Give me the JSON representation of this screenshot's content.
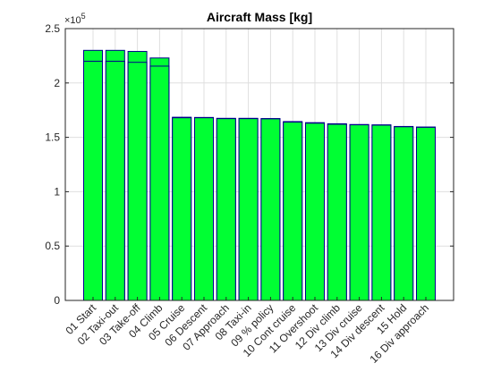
{
  "chart_data": {
    "type": "bar",
    "title": "Aircraft Mass [kg]",
    "xlabel": "",
    "ylabel": "",
    "y_exponent_label": "×10",
    "y_exponent_power": "5",
    "ylim": [
      0,
      250000
    ],
    "yticks": [
      0,
      50000,
      100000,
      150000,
      200000,
      250000
    ],
    "ytick_labels": [
      "0",
      "0.5",
      "1",
      "1.5",
      "2",
      "2.5"
    ],
    "grid": true,
    "categories": [
      "01 Start",
      "02 Taxi-out",
      "03 Take-off",
      "04 Climb",
      "05 Cruise",
      "06 Descent",
      "07 Approach",
      "08 Taxi-in",
      "09 % policy",
      "10 Cont cruise",
      "11 Overshoot",
      "12 Div climb",
      "13 Div cruise",
      "14 Div descent",
      "15 Hold",
      "16 Div approach"
    ],
    "series": [
      {
        "values": [
          230000,
          230000,
          229000,
          223000,
          168500,
          168300,
          167500,
          167500,
          167300,
          164500,
          163500,
          162500,
          161800,
          161500,
          160000,
          159500
        ]
      },
      {
        "values": [
          220000,
          220000,
          219000,
          215500,
          168000,
          168000,
          167200,
          167200,
          167000,
          164000,
          163000,
          162000,
          161500,
          161200,
          159700,
          159200
        ]
      }
    ],
    "colors": {
      "fill": "#00ff33",
      "edge": "#00008b",
      "grid": "#dfdfdf",
      "axis": "#262626"
    }
  }
}
